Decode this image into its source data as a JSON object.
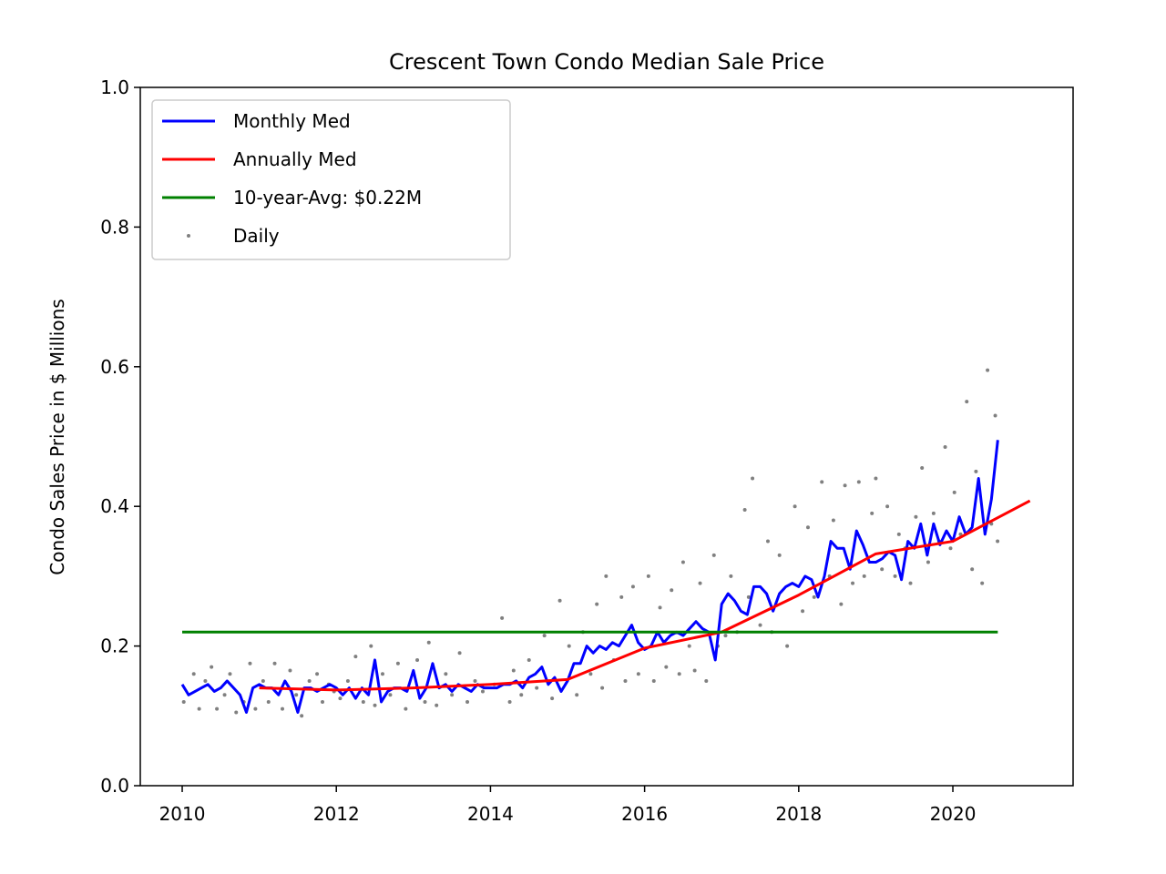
{
  "chart_data": {
    "type": "line",
    "title": "Crescent Town Condo Median Sale Price",
    "y_label": "Condo Sales Price in $ Millions",
    "xlim": [
      2009.456,
      2021.56
    ],
    "ylim": [
      0,
      1
    ],
    "xticks": [
      2010,
      2012,
      2014,
      2016,
      2018,
      2020
    ],
    "yticks": [
      {
        "value": 0,
        "label": "0.0"
      },
      0.2,
      0.4,
      0.6,
      0.8,
      {
        "value": 1,
        "label": "1.0"
      }
    ],
    "legend": "upper left",
    "series": [
      {
        "name": "Monthly Med",
        "color": "#0000ff",
        "type": "line",
        "x": [
          2010,
          2010.083,
          2010.167,
          2010.25,
          2010.333,
          2010.417,
          2010.5,
          2010.583,
          2010.667,
          2010.75,
          2010.833,
          2010.917,
          2011,
          2011.083,
          2011.167,
          2011.25,
          2011.333,
          2011.417,
          2011.5,
          2011.583,
          2011.667,
          2011.75,
          2011.833,
          2011.917,
          2012,
          2012.083,
          2012.167,
          2012.25,
          2012.333,
          2012.417,
          2012.5,
          2012.583,
          2012.667,
          2012.75,
          2012.833,
          2012.917,
          2013,
          2013.083,
          2013.167,
          2013.25,
          2013.333,
          2013.417,
          2013.5,
          2013.583,
          2013.667,
          2013.75,
          2013.833,
          2013.917,
          2014,
          2014.083,
          2014.167,
          2014.25,
          2014.333,
          2014.417,
          2014.5,
          2014.583,
          2014.667,
          2014.75,
          2014.833,
          2014.917,
          2015,
          2015.083,
          2015.167,
          2015.25,
          2015.333,
          2015.417,
          2015.5,
          2015.583,
          2015.667,
          2015.75,
          2015.833,
          2015.917,
          2016,
          2016.083,
          2016.167,
          2016.25,
          2016.333,
          2016.417,
          2016.5,
          2016.583,
          2016.667,
          2016.75,
          2016.833,
          2016.917,
          2017,
          2017.083,
          2017.167,
          2017.25,
          2017.333,
          2017.417,
          2017.5,
          2017.583,
          2017.667,
          2017.75,
          2017.833,
          2017.917,
          2018,
          2018.083,
          2018.167,
          2018.25,
          2018.333,
          2018.417,
          2018.5,
          2018.583,
          2018.667,
          2018.75,
          2018.833,
          2018.917,
          2019,
          2019.083,
          2019.167,
          2019.25,
          2019.333,
          2019.417,
          2019.5,
          2019.583,
          2019.667,
          2019.75,
          2019.833,
          2019.917,
          2020,
          2020.083,
          2020.167,
          2020.25,
          2020.333,
          2020.417,
          2020.5,
          2020.583
        ],
        "values": [
          0.145,
          0.13,
          0.135,
          0.14,
          0.145,
          0.135,
          0.14,
          0.15,
          0.14,
          0.13,
          0.105,
          0.14,
          0.145,
          0.14,
          0.14,
          0.13,
          0.15,
          0.135,
          0.105,
          0.14,
          0.14,
          0.135,
          0.14,
          0.145,
          0.14,
          0.13,
          0.14,
          0.125,
          0.14,
          0.13,
          0.18,
          0.12,
          0.135,
          0.14,
          0.14,
          0.135,
          0.165,
          0.125,
          0.14,
          0.175,
          0.14,
          0.145,
          0.135,
          0.145,
          0.14,
          0.135,
          0.145,
          0.14,
          0.14,
          0.14,
          0.145,
          0.145,
          0.15,
          0.14,
          0.155,
          0.16,
          0.17,
          0.145,
          0.155,
          0.135,
          0.15,
          0.175,
          0.175,
          0.2,
          0.19,
          0.2,
          0.195,
          0.205,
          0.2,
          0.215,
          0.23,
          0.205,
          0.195,
          0.2,
          0.22,
          0.205,
          0.215,
          0.22,
          0.215,
          0.225,
          0.235,
          0.225,
          0.22,
          0.18,
          0.26,
          0.275,
          0.265,
          0.25,
          0.245,
          0.285,
          0.285,
          0.275,
          0.25,
          0.275,
          0.285,
          0.29,
          0.285,
          0.3,
          0.295,
          0.27,
          0.3,
          0.35,
          0.34,
          0.34,
          0.31,
          0.365,
          0.345,
          0.32,
          0.32,
          0.325,
          0.335,
          0.33,
          0.295,
          0.35,
          0.34,
          0.375,
          0.33,
          0.375,
          0.345,
          0.365,
          0.35,
          0.385,
          0.36,
          0.37,
          0.44,
          0.36,
          0.41,
          0.495
        ]
      },
      {
        "name": "Annually Med",
        "color": "#ff0000",
        "type": "line",
        "x": [
          2011,
          2012,
          2013,
          2014,
          2015,
          2016,
          2017,
          2018,
          2019,
          2020,
          2021
        ],
        "values": [
          0.14,
          0.137,
          0.14,
          0.145,
          0.152,
          0.197,
          0.22,
          0.273,
          0.332,
          0.35,
          0.408
        ]
      },
      {
        "name": "10-year-Avg: $0.22M",
        "color": "#008000",
        "type": "line",
        "x": [
          2010,
          2020.583
        ],
        "values": [
          0.22,
          0.22
        ]
      },
      {
        "name": "Daily",
        "color": "#808080",
        "type": "scatter",
        "x": [
          2010.02,
          2010.15,
          2010.22,
          2010.3,
          2010.38,
          2010.45,
          2010.55,
          2010.62,
          2010.7,
          2010.8,
          2010.88,
          2010.95,
          2011.05,
          2011.12,
          2011.2,
          2011.3,
          2011.4,
          2011.48,
          2011.55,
          2011.65,
          2011.75,
          2011.82,
          2011.9,
          2011.97,
          2012.05,
          2012.15,
          2012.25,
          2012.35,
          2012.45,
          2012.5,
          2012.6,
          2012.7,
          2012.8,
          2012.9,
          2013.05,
          2013.15,
          2013.2,
          2013.3,
          2013.42,
          2013.5,
          2013.6,
          2013.7,
          2013.8,
          2013.9,
          2014.05,
          2014.15,
          2014.25,
          2014.3,
          2014.4,
          2014.5,
          2014.6,
          2014.7,
          2014.8,
          2014.9,
          2015.02,
          2015.12,
          2015.2,
          2015.3,
          2015.38,
          2015.45,
          2015.5,
          2015.6,
          2015.7,
          2015.75,
          2015.85,
          2015.92,
          2016.05,
          2016.12,
          2016.2,
          2016.28,
          2016.35,
          2016.45,
          2016.5,
          2016.58,
          2016.65,
          2016.72,
          2016.8,
          2016.9,
          2016.95,
          2017.05,
          2017.12,
          2017.2,
          2017.3,
          2017.35,
          2017.4,
          2017.5,
          2017.6,
          2017.65,
          2017.75,
          2017.85,
          2017.95,
          2018.05,
          2018.12,
          2018.2,
          2018.3,
          2018.4,
          2018.45,
          2018.55,
          2018.6,
          2018.7,
          2018.78,
          2018.85,
          2018.95,
          2019,
          2019.08,
          2019.15,
          2019.25,
          2019.3,
          2019.38,
          2019.45,
          2019.52,
          2019.6,
          2019.68,
          2019.75,
          2019.82,
          2019.9,
          2019.97,
          2020.02,
          2020.1,
          2020.18,
          2020.25,
          2020.3,
          2020.38,
          2020.45,
          2020.5,
          2020.55,
          2020.58
        ],
        "values": [
          0.12,
          0.16,
          0.11,
          0.15,
          0.17,
          0.11,
          0.13,
          0.16,
          0.105,
          0.12,
          0.175,
          0.11,
          0.15,
          0.12,
          0.175,
          0.11,
          0.165,
          0.13,
          0.1,
          0.15,
          0.16,
          0.12,
          0.145,
          0.135,
          0.125,
          0.15,
          0.185,
          0.12,
          0.2,
          0.115,
          0.16,
          0.13,
          0.175,
          0.11,
          0.18,
          0.12,
          0.205,
          0.115,
          0.16,
          0.13,
          0.19,
          0.12,
          0.15,
          0.135,
          0.145,
          0.24,
          0.12,
          0.165,
          0.13,
          0.18,
          0.14,
          0.215,
          0.125,
          0.265,
          0.2,
          0.13,
          0.22,
          0.16,
          0.26,
          0.14,
          0.3,
          0.18,
          0.27,
          0.15,
          0.285,
          0.16,
          0.3,
          0.15,
          0.255,
          0.17,
          0.28,
          0.16,
          0.32,
          0.2,
          0.165,
          0.29,
          0.15,
          0.33,
          0.2,
          0.215,
          0.3,
          0.22,
          0.395,
          0.27,
          0.44,
          0.23,
          0.35,
          0.22,
          0.33,
          0.2,
          0.4,
          0.25,
          0.37,
          0.27,
          0.435,
          0.3,
          0.38,
          0.26,
          0.43,
          0.29,
          0.435,
          0.3,
          0.39,
          0.44,
          0.31,
          0.4,
          0.3,
          0.36,
          0.34,
          0.29,
          0.385,
          0.455,
          0.32,
          0.39,
          0.35,
          0.485,
          0.34,
          0.42,
          0.36,
          0.55,
          0.31,
          0.45,
          0.29,
          0.595,
          0.375,
          0.53,
          0.35
        ]
      }
    ]
  }
}
